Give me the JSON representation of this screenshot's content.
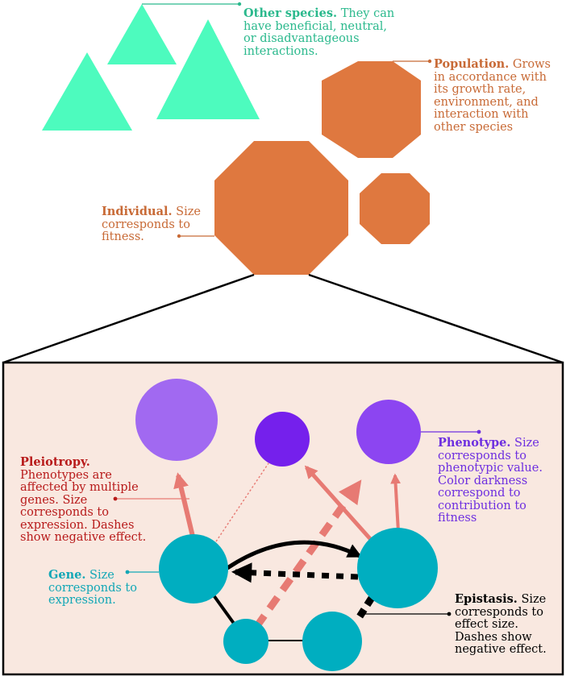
{
  "colors": {
    "species": "#4dfbbe",
    "species_text": "#2bb98d",
    "population": "#df783f",
    "population_text": "#c86a36",
    "zoom_bg": "#f9e8e0",
    "gene": "#00aec0",
    "gene_text": "#12a7b6",
    "pleiotropy_text": "#b81b1b",
    "pleiotropy_arrow": "#e77a73",
    "phenotype_text": "#6e2fe0",
    "phenotype_light": "#a169f1",
    "phenotype_mid": "#8c45f1",
    "phenotype_dark": "#7520ec",
    "epistasis": "#000000"
  },
  "labels": {
    "other_species": {
      "title": "Other species.",
      "lines": [
        "They can",
        "have beneficial, neutral,",
        "or disadvantageous",
        "interactions."
      ]
    },
    "population": {
      "title": "Population.",
      "lines": [
        "Grows",
        "in accordance with",
        "its growth rate,",
        "environment, and",
        "interaction with",
        "other species"
      ]
    },
    "individual": {
      "title": "Individual.",
      "lines": [
        "Size",
        "corresponds to",
        "fitness."
      ]
    },
    "pleiotropy": {
      "title": "Pleiotropy.",
      "lines": [
        "Phenotypes are",
        "affected by multiple",
        "genes. Size",
        "corresponds to",
        "expression. Dashes",
        "show negative effect."
      ]
    },
    "phenotype": {
      "title": "Phenotype.",
      "lines": [
        "Size",
        "corresponds to",
        "phenotypic value.",
        "Color darkness",
        "correspond to",
        "contribution to",
        "fitness"
      ]
    },
    "gene": {
      "title": "Gene.",
      "lines": [
        "Size",
        "corresponds to",
        "expression."
      ]
    },
    "epistasis": {
      "title": "Epistasis.",
      "lines": [
        "Size",
        "corresponds to",
        "effect size.",
        "Dashes show",
        "negative effect."
      ]
    }
  }
}
